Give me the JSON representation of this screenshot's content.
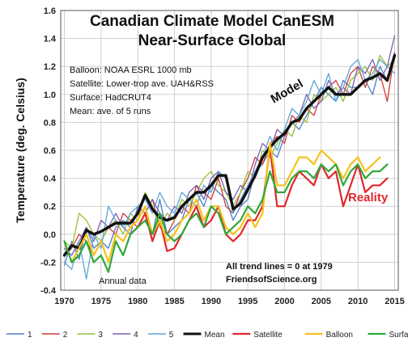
{
  "chart_data": {
    "type": "line",
    "title": "Canadian Climate Model CanESM",
    "subtitle": "Near-Surface Global",
    "ylabel": "Temperature  (deg. Celsius)",
    "xlabel": "",
    "xlim": [
      1969.5,
      2015.5
    ],
    "ylim": [
      -0.4,
      1.6
    ],
    "x_ticks": [
      1970,
      1975,
      1980,
      1985,
      1990,
      1995,
      2000,
      2005,
      2010,
      2015
    ],
    "y_ticks": [
      -0.4,
      -0.2,
      0.0,
      0.2,
      0.4,
      0.6,
      0.8,
      1.0,
      1.2,
      1.4,
      1.6
    ],
    "grid": true,
    "legend_position": "bottom",
    "info_lines": [
      "Balloon: NOAA ESRL 1000  mb",
      "Satellite: Lower-trop ave. UAH&RSS",
      "Surface: HadCRUT4",
      "Mean: ave. of 5 runs"
    ],
    "annotations": {
      "annual": "Annual data",
      "trend": "All trend lines = 0 at 1979",
      "source": "FriendsofScience.org",
      "model": "Model",
      "reality": "Reality"
    },
    "x_start": 1970,
    "series": [
      {
        "name": "1",
        "color": "#4a7fc6",
        "width": 1.3,
        "values": [
          -0.22,
          -0.05,
          -0.18,
          0.05,
          -0.1,
          -0.05,
          -0.1,
          0.05,
          0.1,
          0.05,
          0.1,
          0.2,
          0.0,
          0.25,
          0.0,
          0.05,
          0.1,
          0.25,
          0.3,
          0.2,
          0.35,
          0.3,
          0.25,
          0.1,
          0.2,
          0.25,
          0.45,
          0.5,
          0.6,
          0.55,
          0.7,
          0.8,
          0.75,
          0.85,
          0.95,
          1.05,
          1.0,
          0.95,
          1.1,
          1.05,
          1.05,
          1.1,
          1.0,
          1.2,
          1.1,
          1.3
        ]
      },
      {
        "name": "2",
        "color": "#d43a3a",
        "width": 1.3,
        "values": [
          -0.15,
          -0.1,
          0.0,
          -0.05,
          -0.15,
          -0.05,
          0.05,
          0.0,
          0.15,
          0.1,
          0.05,
          0.15,
          0.25,
          0.05,
          0.0,
          0.1,
          0.2,
          0.15,
          0.35,
          0.3,
          0.25,
          0.4,
          0.2,
          0.15,
          0.3,
          0.4,
          0.55,
          0.5,
          0.65,
          0.7,
          0.65,
          0.85,
          0.8,
          0.9,
          0.85,
          1.0,
          1.05,
          1.1,
          1.0,
          1.15,
          1.2,
          1.05,
          1.2,
          1.15,
          0.95,
          1.3
        ]
      },
      {
        "name": "3",
        "color": "#98bf3a",
        "width": 1.3,
        "values": [
          -0.05,
          -0.1,
          0.15,
          0.1,
          0.0,
          -0.05,
          0.05,
          0.1,
          0.0,
          0.15,
          0.1,
          0.3,
          0.2,
          0.05,
          0.15,
          0.1,
          0.25,
          0.2,
          0.3,
          0.4,
          0.45,
          0.35,
          0.3,
          0.2,
          0.3,
          0.45,
          0.4,
          0.6,
          0.55,
          0.65,
          0.75,
          0.7,
          0.85,
          0.8,
          1.0,
          0.95,
          1.0,
          1.05,
          0.95,
          1.1,
          1.15,
          1.2,
          1.1,
          1.28,
          1.2,
          1.25
        ]
      },
      {
        "name": "4",
        "color": "#7c5fb3",
        "width": 1.3,
        "values": [
          -0.1,
          -0.15,
          -0.05,
          0.05,
          -0.05,
          0.1,
          0.05,
          0.15,
          0.05,
          0.0,
          0.2,
          0.15,
          0.25,
          0.15,
          0.1,
          0.2,
          0.15,
          0.3,
          0.35,
          0.25,
          0.4,
          0.45,
          0.3,
          0.25,
          0.35,
          0.3,
          0.5,
          0.65,
          0.6,
          0.75,
          0.7,
          0.8,
          0.85,
          1.0,
          0.9,
          0.95,
          1.1,
          1.0,
          1.05,
          1.0,
          1.2,
          1.15,
          1.25,
          1.1,
          1.2,
          1.42
        ]
      },
      {
        "name": "5",
        "color": "#5aa7d8",
        "width": 1.3,
        "values": [
          -0.2,
          -0.25,
          -0.05,
          -0.32,
          0.0,
          -0.1,
          0.2,
          0.1,
          0.05,
          0.15,
          0.2,
          0.25,
          0.15,
          0.3,
          0.2,
          0.15,
          0.3,
          0.25,
          0.2,
          0.35,
          0.3,
          0.45,
          0.4,
          0.15,
          0.25,
          0.35,
          0.45,
          0.55,
          0.7,
          0.6,
          0.75,
          0.9,
          0.85,
          0.95,
          1.1,
          1.0,
          1.15,
          0.95,
          1.05,
          1.2,
          1.25,
          1.1,
          1.15,
          1.25,
          1.2,
          1.15
        ]
      },
      {
        "name": "Mean",
        "color": "#111111",
        "width": 3.4,
        "values": [
          -0.15,
          -0.08,
          -0.1,
          0.03,
          0.0,
          0.02,
          0.05,
          0.08,
          0.08,
          0.08,
          0.15,
          0.28,
          0.18,
          0.12,
          0.1,
          0.12,
          0.2,
          0.25,
          0.3,
          0.3,
          0.35,
          0.42,
          0.42,
          0.18,
          0.22,
          0.32,
          0.42,
          0.55,
          0.62,
          0.68,
          0.72,
          0.8,
          0.82,
          0.9,
          0.95,
          1.0,
          1.05,
          1.0,
          1.0,
          1.0,
          1.05,
          1.1,
          1.12,
          1.15,
          1.1,
          1.28
        ]
      },
      {
        "name": "Satellite",
        "color": "#e0282c",
        "width": 2.2,
        "values": [
          null,
          null,
          null,
          null,
          null,
          null,
          null,
          null,
          null,
          0.0,
          0.05,
          0.15,
          -0.05,
          0.1,
          -0.12,
          -0.1,
          0.0,
          0.1,
          0.2,
          0.05,
          0.1,
          0.2,
          0.0,
          -0.05,
          0.0,
          0.1,
          0.1,
          0.2,
          0.62,
          0.2,
          0.2,
          0.35,
          0.45,
          0.4,
          0.35,
          0.5,
          0.4,
          0.45,
          0.2,
          0.35,
          0.5,
          0.3,
          0.35,
          0.35,
          0.4
        ]
      },
      {
        "name": "Balloon",
        "color": "#f5c21b",
        "width": 2.2,
        "values": [
          -0.05,
          -0.2,
          -0.1,
          0.0,
          -0.15,
          -0.05,
          -0.2,
          0.0,
          -0.05,
          0.05,
          0.1,
          0.2,
          0.0,
          0.1,
          -0.05,
          0.0,
          0.1,
          0.15,
          0.25,
          0.1,
          0.2,
          0.2,
          0.05,
          0.0,
          0.05,
          0.15,
          0.05,
          0.15,
          0.65,
          0.35,
          0.35,
          0.45,
          0.55,
          0.55,
          0.5,
          0.6,
          0.55,
          0.5,
          0.4,
          0.5,
          0.55,
          0.45,
          0.5,
          0.55
        ]
      },
      {
        "name": "Surface",
        "color": "#2fa83a",
        "width": 2.2,
        "values": [
          -0.05,
          -0.2,
          -0.15,
          -0.05,
          -0.2,
          -0.15,
          -0.27,
          -0.05,
          -0.15,
          0.0,
          0.05,
          0.1,
          0.0,
          0.15,
          0.0,
          -0.05,
          0.0,
          0.1,
          0.15,
          0.05,
          0.2,
          0.15,
          0.0,
          0.05,
          0.1,
          0.2,
          0.15,
          0.25,
          0.45,
          0.3,
          0.3,
          0.4,
          0.45,
          0.45,
          0.4,
          0.5,
          0.45,
          0.5,
          0.35,
          0.45,
          0.5,
          0.4,
          0.45,
          0.45,
          0.5
        ]
      }
    ]
  }
}
